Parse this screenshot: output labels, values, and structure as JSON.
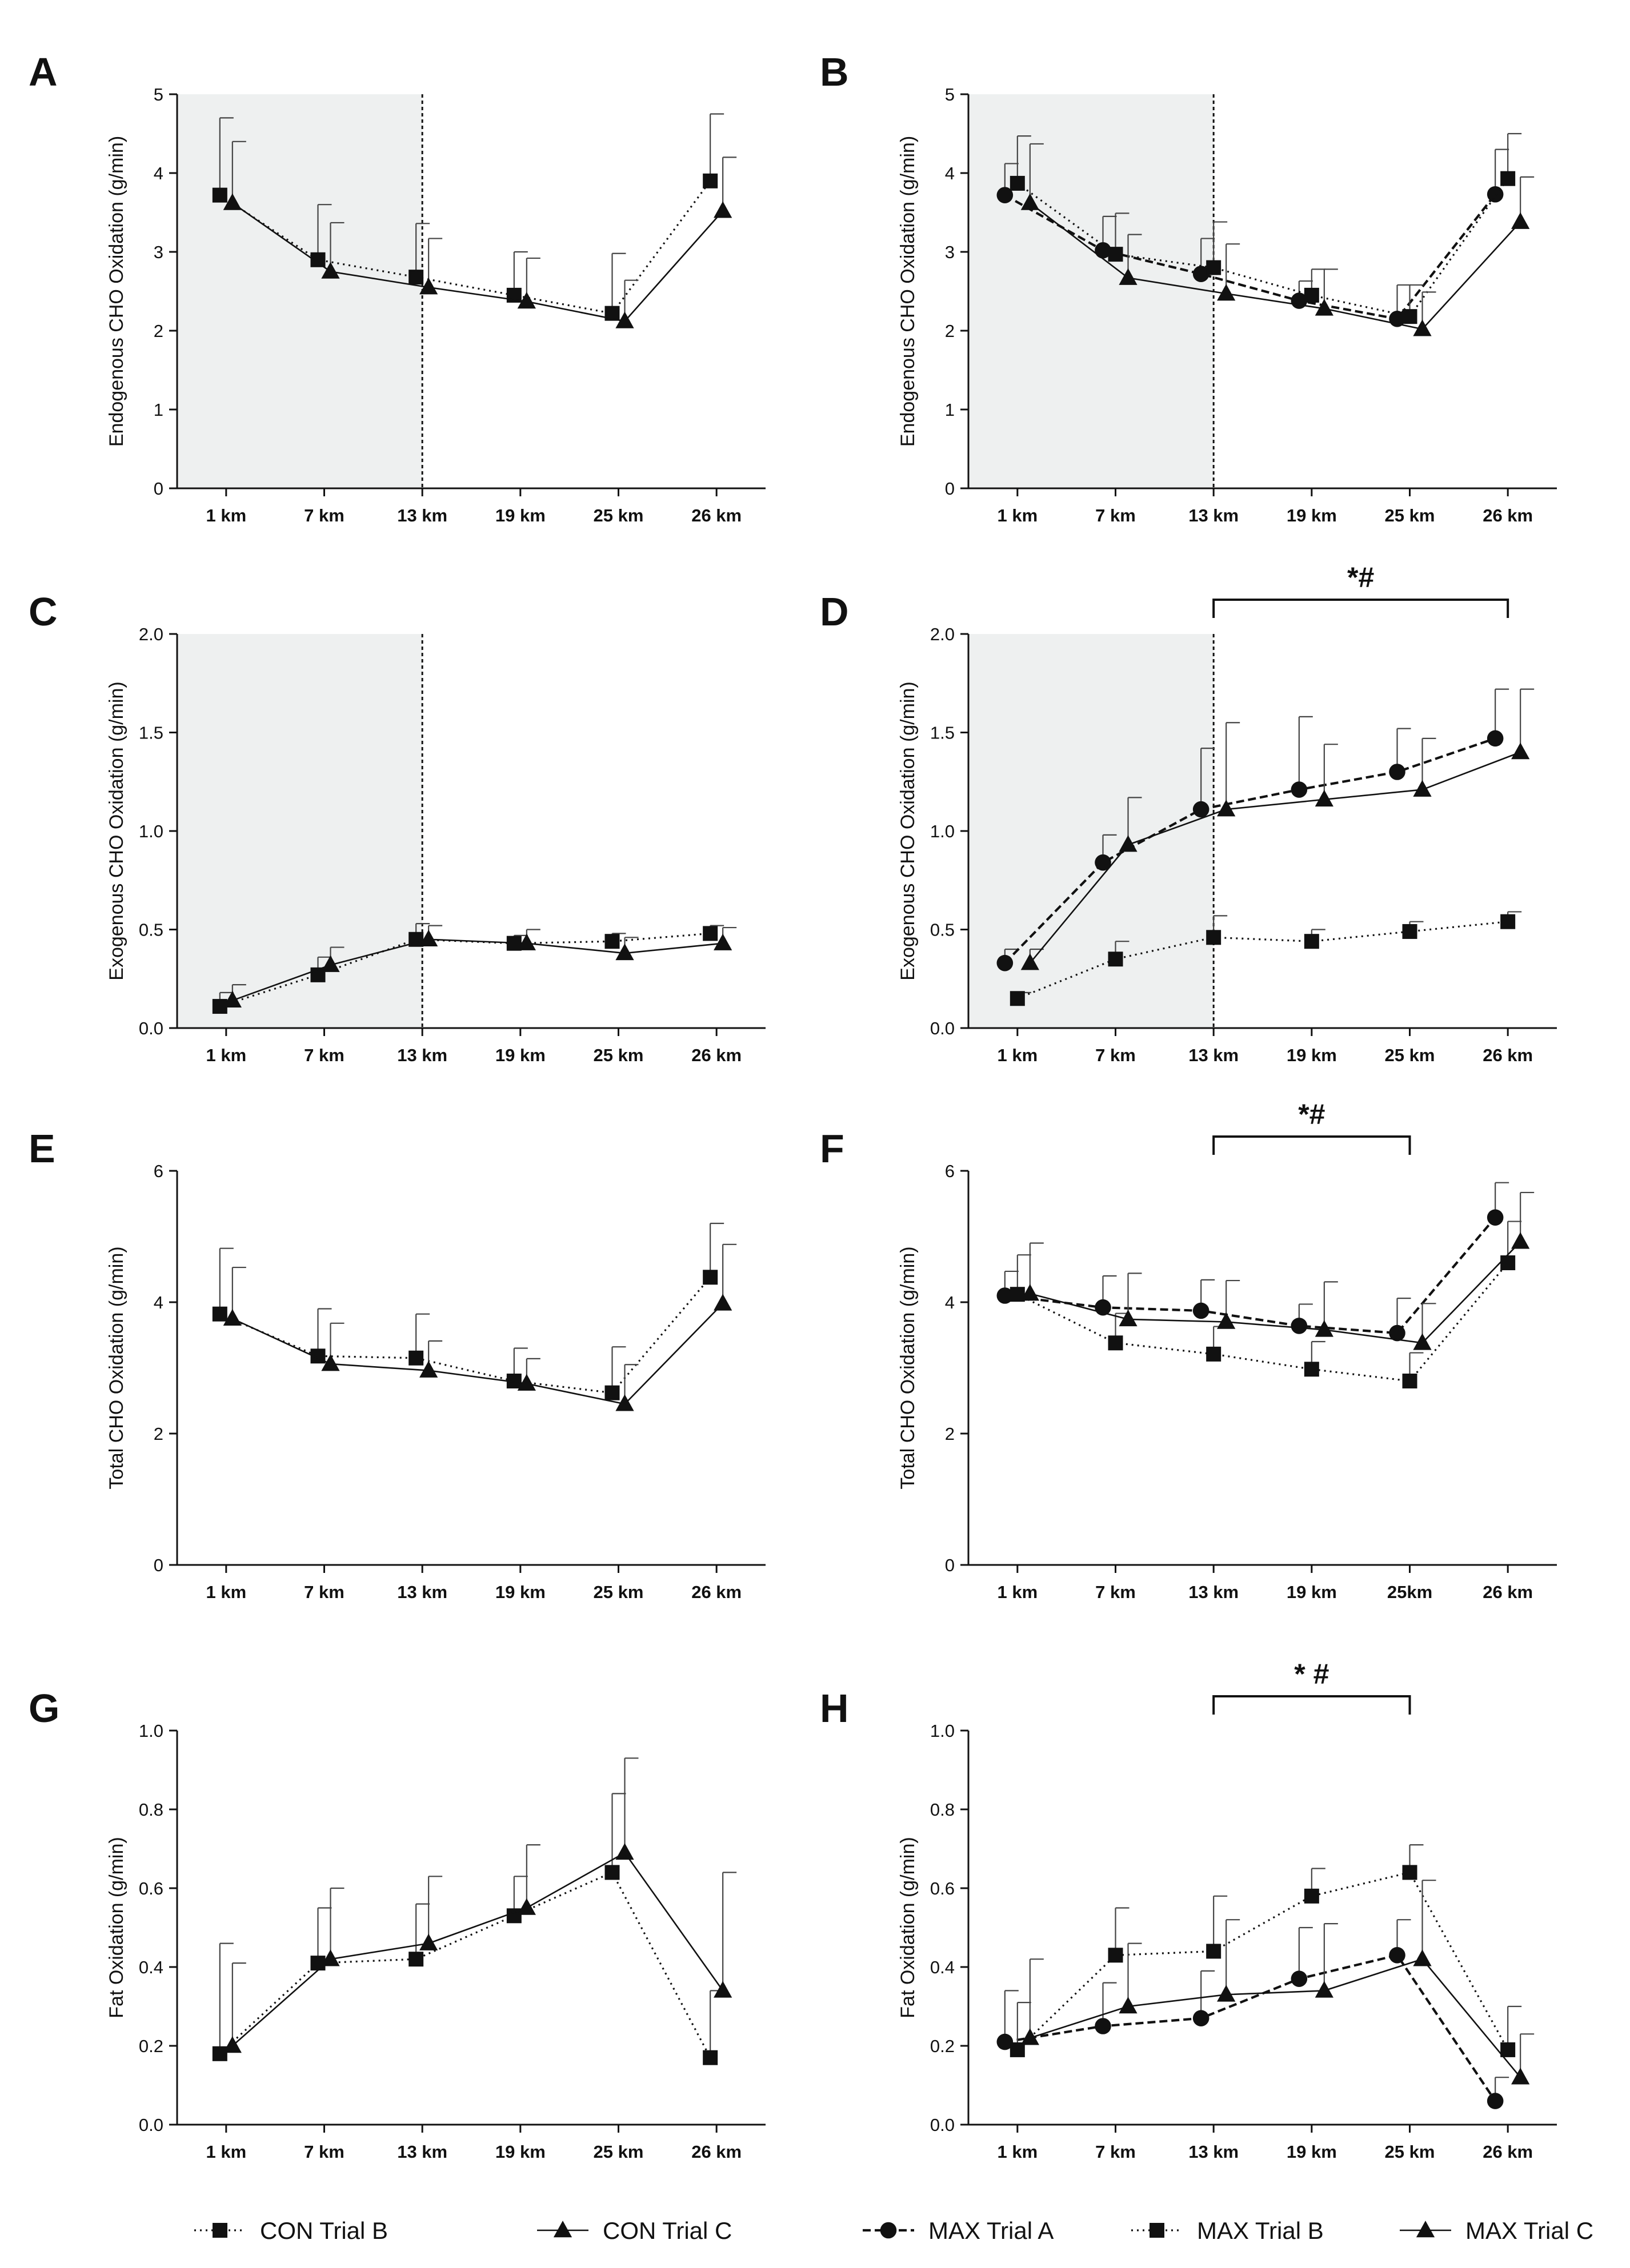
{
  "figure": {
    "legend_left": [
      {
        "label": "CON Trial B",
        "marker": "square",
        "dash": "dotted"
      },
      {
        "label": "CON Trial C",
        "marker": "triangle",
        "dash": "solid"
      }
    ],
    "legend_right": [
      {
        "label": "MAX Trial A",
        "marker": "circle",
        "dash": "dashed"
      },
      {
        "label": "MAX Trial B",
        "marker": "square",
        "dash": "dotted"
      },
      {
        "label": "MAX Trial C",
        "marker": "triangle",
        "dash": "solid"
      }
    ]
  },
  "chart_data": [
    {
      "panel": "A",
      "type": "line",
      "ylabel": "Endogenous CHO Oxidation (g/min)",
      "ylim": [
        0,
        5
      ],
      "yticks": [
        "0",
        "1",
        "2",
        "3",
        "4",
        "5"
      ],
      "categories": [
        "1 km",
        "7 km",
        "13 km",
        "19 km",
        "25 km",
        "26 km"
      ],
      "shaded_until": "13 km",
      "series": [
        {
          "name": "CON Trial B",
          "marker": "square",
          "dash": "dotted",
          "values": [
            3.72,
            2.9,
            2.68,
            2.45,
            2.22,
            3.9
          ],
          "error": [
            0.98,
            0.7,
            0.68,
            0.55,
            0.76,
            0.85
          ]
        },
        {
          "name": "CON Trial C",
          "marker": "triangle",
          "dash": "solid",
          "values": [
            3.62,
            2.75,
            2.55,
            2.37,
            2.12,
            3.52
          ],
          "error": [
            0.78,
            0.62,
            0.62,
            0.55,
            0.52,
            0.68
          ]
        }
      ]
    },
    {
      "panel": "B",
      "type": "line",
      "ylabel": "Endogenous CHO Oxidation (g/min)",
      "ylim": [
        0,
        5
      ],
      "yticks": [
        "0",
        "1",
        "2",
        "3",
        "4",
        "5"
      ],
      "categories": [
        "1 km",
        "7 km",
        "13 km",
        "19 km",
        "25 km",
        "26 km"
      ],
      "shaded_until": "13 km",
      "series": [
        {
          "name": "MAX Trial A",
          "marker": "circle",
          "dash": "dashed",
          "values": [
            3.72,
            3.02,
            2.72,
            2.38,
            2.15,
            3.73
          ],
          "error": [
            0.4,
            0.43,
            0.45,
            0.25,
            0.43,
            0.57
          ]
        },
        {
          "name": "MAX Trial B",
          "marker": "square",
          "dash": "dotted",
          "values": [
            3.87,
            2.97,
            2.8,
            2.45,
            2.18,
            3.93
          ],
          "error": [
            0.6,
            0.52,
            0.58,
            0.33,
            0.4,
            0.57
          ]
        },
        {
          "name": "MAX Trial C",
          "marker": "triangle",
          "dash": "solid",
          "values": [
            3.62,
            2.67,
            2.47,
            2.28,
            2.02,
            3.38
          ],
          "error": [
            0.75,
            0.55,
            0.63,
            0.5,
            0.47,
            0.57
          ]
        }
      ]
    },
    {
      "panel": "C",
      "type": "line",
      "ylabel": "Exogenous CHO Oxidation (g/min)",
      "ylim": [
        0,
        2
      ],
      "yticks": [
        "0.0",
        "0.5",
        "1.0",
        "1.5",
        "2.0"
      ],
      "categories": [
        "1 km",
        "7 km",
        "13 km",
        "19 km",
        "25 km",
        "26 km"
      ],
      "shaded_until": "13 km",
      "series": [
        {
          "name": "CON Trial B",
          "marker": "square",
          "dash": "dotted",
          "values": [
            0.11,
            0.27,
            0.45,
            0.43,
            0.44,
            0.48
          ],
          "error": [
            0.07,
            0.09,
            0.08,
            0.04,
            0.04,
            0.04
          ]
        },
        {
          "name": "CON Trial C",
          "marker": "triangle",
          "dash": "solid",
          "values": [
            0.14,
            0.32,
            0.45,
            0.43,
            0.38,
            0.43
          ],
          "error": [
            0.08,
            0.09,
            0.07,
            0.07,
            0.08,
            0.08
          ]
        }
      ]
    },
    {
      "panel": "D",
      "type": "line",
      "ylabel": "Exogenous CHO Oxidation (g/min)",
      "ylim": [
        0,
        2
      ],
      "yticks": [
        "0.0",
        "0.5",
        "1.0",
        "1.5",
        "2.0"
      ],
      "categories": [
        "1 km",
        "7 km",
        "13 km",
        "19 km",
        "25 km",
        "26 km"
      ],
      "shaded_until": "13 km",
      "significance": {
        "label": "*#",
        "from": "13 km",
        "to": "26 km"
      },
      "series": [
        {
          "name": "MAX Trial A",
          "marker": "circle",
          "dash": "dashed",
          "values": [
            0.33,
            0.84,
            1.11,
            1.21,
            1.3,
            1.47
          ],
          "error": [
            0.07,
            0.14,
            0.31,
            0.37,
            0.22,
            0.25
          ]
        },
        {
          "name": "MAX Trial B",
          "marker": "square",
          "dash": "dotted",
          "values": [
            0.15,
            0.35,
            0.46,
            0.44,
            0.49,
            0.54
          ],
          "error": [
            0.03,
            0.09,
            0.11,
            0.06,
            0.05,
            0.05
          ]
        },
        {
          "name": "MAX Trial C",
          "marker": "triangle",
          "dash": "solid",
          "values": [
            0.33,
            0.93,
            1.11,
            1.16,
            1.21,
            1.4
          ],
          "error": [
            0.07,
            0.24,
            0.44,
            0.28,
            0.26,
            0.32
          ]
        }
      ]
    },
    {
      "panel": "E",
      "type": "line",
      "ylabel": "Total CHO Oxidation (g/min)",
      "ylim": [
        0,
        6
      ],
      "yticks": [
        "0",
        "2",
        "4",
        "6"
      ],
      "categories": [
        "1 km",
        "7 km",
        "13 km",
        "19 km",
        "25 km",
        "26 km"
      ],
      "series": [
        {
          "name": "CON Trial B",
          "marker": "square",
          "dash": "dotted",
          "values": [
            3.82,
            3.18,
            3.15,
            2.8,
            2.62,
            4.38
          ],
          "error": [
            1.0,
            0.72,
            0.67,
            0.5,
            0.7,
            0.82
          ]
        },
        {
          "name": "CON Trial C",
          "marker": "triangle",
          "dash": "solid",
          "values": [
            3.75,
            3.06,
            2.96,
            2.76,
            2.45,
            3.98
          ],
          "error": [
            0.78,
            0.62,
            0.45,
            0.38,
            0.6,
            0.9
          ]
        }
      ]
    },
    {
      "panel": "F",
      "type": "line",
      "ylabel": "Total CHO Oxidation (g/min)",
      "ylim": [
        0,
        6
      ],
      "yticks": [
        "0",
        "2",
        "4",
        "6"
      ],
      "categories": [
        "1 km",
        "7 km",
        "13 km",
        "19 km",
        "25km",
        "26 km"
      ],
      "significance": {
        "label": "*#",
        "from": "13 km",
        "to": "25km"
      },
      "series": [
        {
          "name": "MAX Trial A",
          "marker": "circle",
          "dash": "dashed",
          "values": [
            4.1,
            3.92,
            3.87,
            3.64,
            3.53,
            5.29
          ],
          "error": [
            0.37,
            0.48,
            0.47,
            0.33,
            0.53,
            0.53
          ]
        },
        {
          "name": "MAX Trial B",
          "marker": "square",
          "dash": "dotted",
          "values": [
            4.12,
            3.38,
            3.21,
            2.98,
            2.8,
            4.6
          ],
          "error": [
            0.6,
            0.45,
            0.42,
            0.42,
            0.43,
            0.63
          ]
        },
        {
          "name": "MAX Trial C",
          "marker": "triangle",
          "dash": "solid",
          "values": [
            4.13,
            3.74,
            3.7,
            3.58,
            3.38,
            4.92
          ],
          "error": [
            0.77,
            0.7,
            0.63,
            0.73,
            0.6,
            0.75
          ]
        }
      ]
    },
    {
      "panel": "G",
      "type": "line",
      "ylabel": "Fat Oxidation (g/min)",
      "ylim": [
        0,
        1
      ],
      "yticks": [
        "0.0",
        "0.2",
        "0.4",
        "0.6",
        "0.8",
        "1.0"
      ],
      "categories": [
        "1 km",
        "7 km",
        "13 km",
        "19 km",
        "25 km",
        "26 km"
      ],
      "series": [
        {
          "name": "CON Trial B",
          "marker": "square",
          "dash": "dotted",
          "values": [
            0.18,
            0.41,
            0.42,
            0.53,
            0.64,
            0.17
          ],
          "error": [
            0.28,
            0.14,
            0.14,
            0.1,
            0.2,
            0.17
          ]
        },
        {
          "name": "CON Trial C",
          "marker": "triangle",
          "dash": "solid",
          "values": [
            0.2,
            0.42,
            0.46,
            0.55,
            0.69,
            0.34
          ],
          "error": [
            0.21,
            0.18,
            0.17,
            0.16,
            0.24,
            0.3
          ]
        }
      ]
    },
    {
      "panel": "H",
      "type": "line",
      "ylabel": "Fat Oxidation (g/min)",
      "ylim": [
        0,
        1
      ],
      "yticks": [
        "0.0",
        "0.2",
        "0.4",
        "0.6",
        "0.8",
        "1.0"
      ],
      "categories": [
        "1 km",
        "7 km",
        "13 km",
        "19 km",
        "25 km",
        "26 km"
      ],
      "significance": {
        "label": "* #",
        "from": "13 km",
        "to": "25 km"
      },
      "series": [
        {
          "name": "MAX Trial A",
          "marker": "circle",
          "dash": "dashed",
          "values": [
            0.21,
            0.25,
            0.27,
            0.37,
            0.43,
            0.06
          ],
          "error": [
            0.13,
            0.11,
            0.12,
            0.13,
            0.09,
            0.06
          ]
        },
        {
          "name": "MAX Trial B",
          "marker": "square",
          "dash": "dotted",
          "values": [
            0.19,
            0.43,
            0.44,
            0.58,
            0.64,
            0.19
          ],
          "error": [
            0.12,
            0.12,
            0.14,
            0.07,
            0.07,
            0.11
          ]
        },
        {
          "name": "MAX Trial C",
          "marker": "triangle",
          "dash": "solid",
          "values": [
            0.22,
            0.3,
            0.33,
            0.34,
            0.42,
            0.12
          ],
          "error": [
            0.2,
            0.16,
            0.19,
            0.17,
            0.2,
            0.11
          ]
        }
      ]
    }
  ]
}
